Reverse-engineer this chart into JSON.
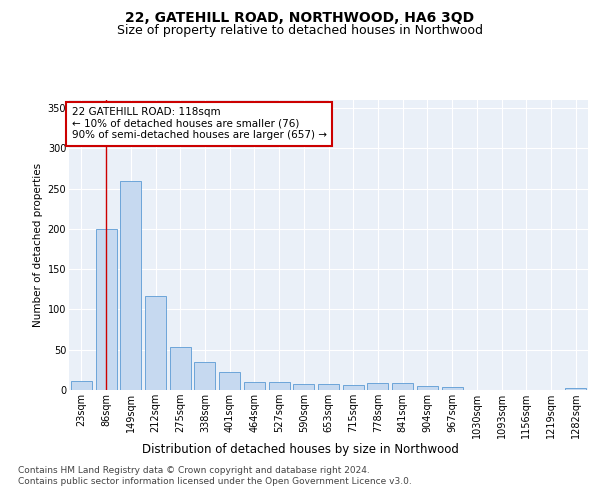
{
  "title": "22, GATEHILL ROAD, NORTHWOOD, HA6 3QD",
  "subtitle": "Size of property relative to detached houses in Northwood",
  "xlabel": "Distribution of detached houses by size in Northwood",
  "ylabel": "Number of detached properties",
  "categories": [
    "23sqm",
    "86sqm",
    "149sqm",
    "212sqm",
    "275sqm",
    "338sqm",
    "401sqm",
    "464sqm",
    "527sqm",
    "590sqm",
    "653sqm",
    "715sqm",
    "778sqm",
    "841sqm",
    "904sqm",
    "967sqm",
    "1030sqm",
    "1093sqm",
    "1156sqm",
    "1219sqm",
    "1282sqm"
  ],
  "values": [
    11,
    200,
    260,
    117,
    53,
    35,
    22,
    10,
    10,
    8,
    7,
    6,
    9,
    9,
    5,
    4,
    0,
    0,
    0,
    0,
    3
  ],
  "bar_color": "#c6d9f0",
  "bar_edge_color": "#5b9bd5",
  "background_color": "#ffffff",
  "plot_bg_color": "#eaf0f8",
  "grid_color": "#ffffff",
  "annotation_box_text": "22 GATEHILL ROAD: 118sqm\n← 10% of detached houses are smaller (76)\n90% of semi-detached houses are larger (657) →",
  "vline_x": 1.0,
  "vline_color": "#cc0000",
  "ylim": [
    0,
    360
  ],
  "yticks": [
    0,
    50,
    100,
    150,
    200,
    250,
    300,
    350
  ],
  "footer1": "Contains HM Land Registry data © Crown copyright and database right 2024.",
  "footer2": "Contains public sector information licensed under the Open Government Licence v3.0.",
  "title_fontsize": 10,
  "subtitle_fontsize": 9,
  "xlabel_fontsize": 8.5,
  "ylabel_fontsize": 7.5,
  "tick_fontsize": 7,
  "annotation_fontsize": 7.5,
  "footer_fontsize": 6.5
}
